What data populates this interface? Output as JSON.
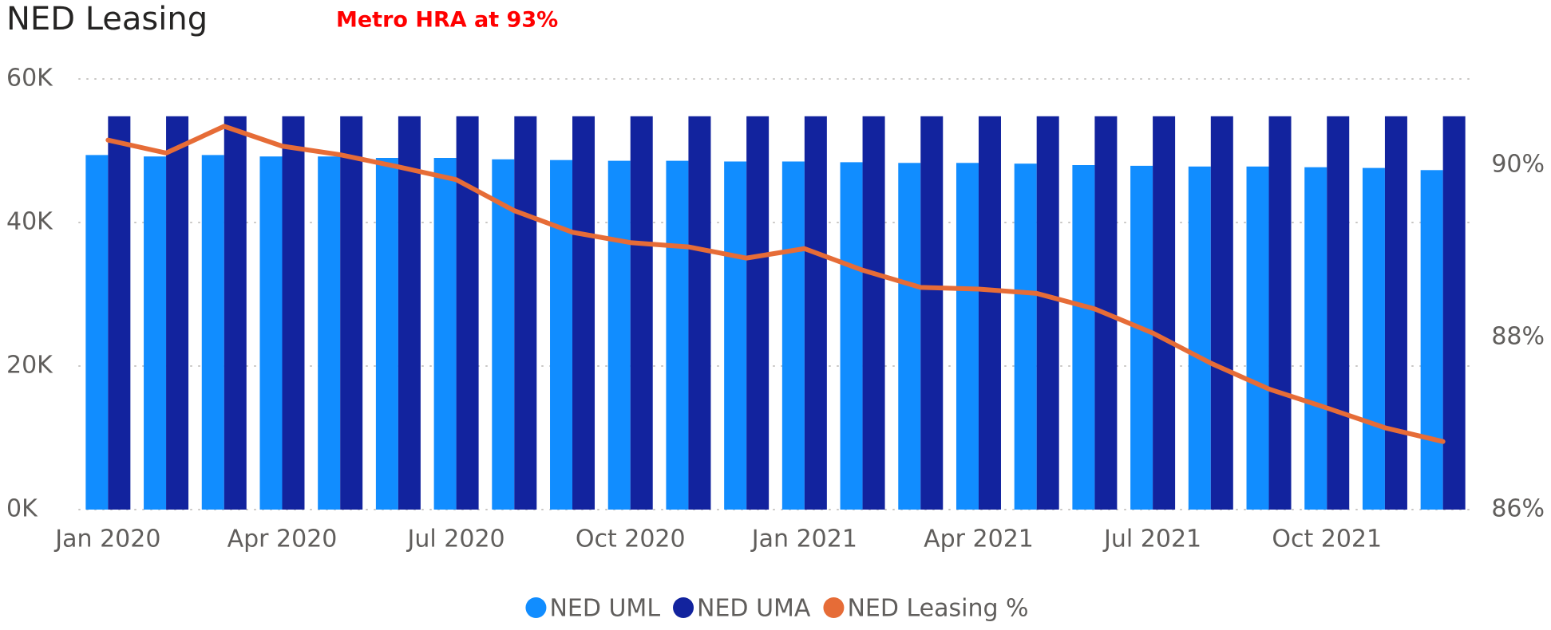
{
  "chart_data": {
    "type": "combo",
    "title": "NED Leasing",
    "annotation": "Metro HRA at 93%",
    "annotation_color": "#ff0000",
    "categories": [
      "Jan 2020",
      null,
      null,
      "Apr 2020",
      null,
      null,
      "Jul 2020",
      null,
      null,
      "Oct 2020",
      null,
      null,
      "Jan 2021",
      null,
      null,
      "Apr 2021",
      null,
      null,
      "Jul 2021",
      null,
      null,
      "Oct 2021",
      null,
      null
    ],
    "series": [
      {
        "name": "NED UML",
        "color": "#118dff",
        "type": "bar",
        "values": [
          49400,
          49200,
          49400,
          49200,
          49200,
          49000,
          49000,
          48800,
          48700,
          48600,
          48600,
          48500,
          48500,
          48400,
          48300,
          48300,
          48200,
          48000,
          47900,
          47800,
          47800,
          47700,
          47600,
          47300
        ]
      },
      {
        "name": "NED UMA",
        "color": "#12239e",
        "type": "bar",
        "values": [
          54800,
          54800,
          54800,
          54800,
          54800,
          54800,
          54800,
          54800,
          54800,
          54800,
          54800,
          54800,
          54800,
          54800,
          54800,
          54800,
          54800,
          54800,
          54800,
          54800,
          54800,
          54800,
          54800,
          54800
        ]
      },
      {
        "name": "NED Leasing %",
        "color": "#e66c37",
        "type": "line",
        "axis": "y2",
        "values": [
          90.29,
          90.14,
          90.45,
          90.22,
          90.12,
          89.98,
          89.83,
          89.47,
          89.22,
          89.1,
          89.05,
          88.92,
          89.03,
          88.78,
          88.58,
          88.56,
          88.51,
          88.33,
          88.05,
          87.7,
          87.4,
          87.18,
          86.95,
          86.79
        ]
      }
    ],
    "ylim": [
      0,
      60000
    ],
    "yticks": [
      {
        "value": 0,
        "label": "0K"
      },
      {
        "value": 20000,
        "label": "20K"
      },
      {
        "value": 40000,
        "label": "40K"
      },
      {
        "value": 60000,
        "label": "60K"
      }
    ],
    "y2lim": [
      86,
      91
    ],
    "y2ticks": [
      {
        "value": 86,
        "label": "86%"
      },
      {
        "value": 88,
        "label": "88%"
      },
      {
        "value": 90,
        "label": "90%"
      }
    ],
    "grid": true,
    "legend": "bottom"
  }
}
